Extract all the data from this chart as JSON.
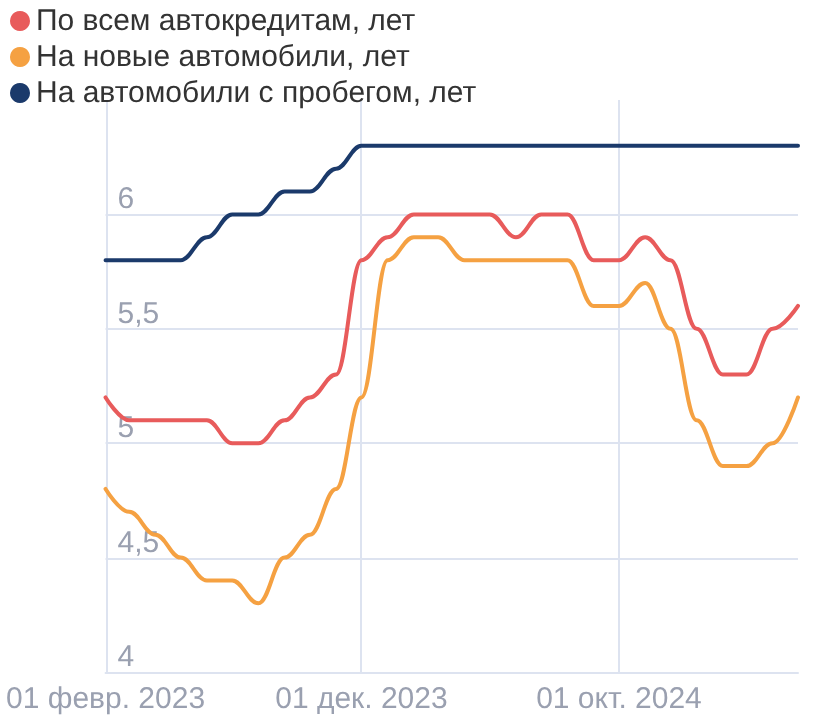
{
  "chart_data": {
    "type": "line",
    "x": [
      "2023-02-01",
      "2023-03-01",
      "2023-04-01",
      "2023-05-01",
      "2023-06-01",
      "2023-07-01",
      "2023-08-01",
      "2023-09-01",
      "2023-10-01",
      "2023-11-01",
      "2023-12-01",
      "2024-01-01",
      "2024-02-01",
      "2024-03-01",
      "2024-04-01",
      "2024-05-01",
      "2024-06-01",
      "2024-07-01",
      "2024-08-01",
      "2024-09-01",
      "2024-10-01",
      "2024-11-01",
      "2024-12-01",
      "2025-01-01",
      "2025-02-01",
      "2025-03-01",
      "2025-04-01",
      "2025-05-01"
    ],
    "series": [
      {
        "name": "По всем автокредитам, лет",
        "color": "#e85b5b",
        "values": [
          5.2,
          5.1,
          5.1,
          5.1,
          5.1,
          5.0,
          5.0,
          5.1,
          5.2,
          5.3,
          5.8,
          5.9,
          6.0,
          6.0,
          6.0,
          6.0,
          5.9,
          6.0,
          6.0,
          5.8,
          5.8,
          5.9,
          5.8,
          5.5,
          5.3,
          5.3,
          5.5,
          5.6
        ]
      },
      {
        "name": "На новые автомобили, лет",
        "color": "#f5a142",
        "values": [
          4.8,
          4.7,
          4.6,
          4.5,
          4.4,
          4.4,
          4.3,
          4.5,
          4.6,
          4.8,
          5.2,
          5.8,
          5.9,
          5.9,
          5.8,
          5.8,
          5.8,
          5.8,
          5.8,
          5.6,
          5.6,
          5.7,
          5.5,
          5.1,
          4.9,
          4.9,
          5.0,
          5.2
        ]
      },
      {
        "name": "На автомобили с пробегом, лет",
        "color": "#1b3a6b",
        "values": [
          5.8,
          5.8,
          5.8,
          5.8,
          5.9,
          6.0,
          6.0,
          6.1,
          6.1,
          6.2,
          6.3,
          6.3,
          6.3,
          6.3,
          6.3,
          6.3,
          6.3,
          6.3,
          6.3,
          6.3,
          6.3,
          6.3,
          6.3,
          6.3,
          6.3,
          6.3,
          6.3,
          6.3
        ]
      }
    ],
    "xlim": [
      "2023-02-01",
      "2025-05-01"
    ],
    "xticks": [
      {
        "value": "2023-02-01",
        "label": "01 февр. 2023"
      },
      {
        "value": "2023-12-01",
        "label": "01 дек. 2023"
      },
      {
        "value": "2024-10-01",
        "label": "01 окт. 2024"
      }
    ],
    "ylim": [
      4,
      6.5
    ],
    "yticks": [
      {
        "value": 4,
        "label": "4"
      },
      {
        "value": 4.5,
        "label": "4,5"
      },
      {
        "value": 5,
        "label": "5"
      },
      {
        "value": 5.5,
        "label": "5,5"
      },
      {
        "value": 6,
        "label": "6"
      }
    ],
    "grid": true,
    "legend": "top left",
    "marker": "none",
    "line_style": "solid"
  }
}
